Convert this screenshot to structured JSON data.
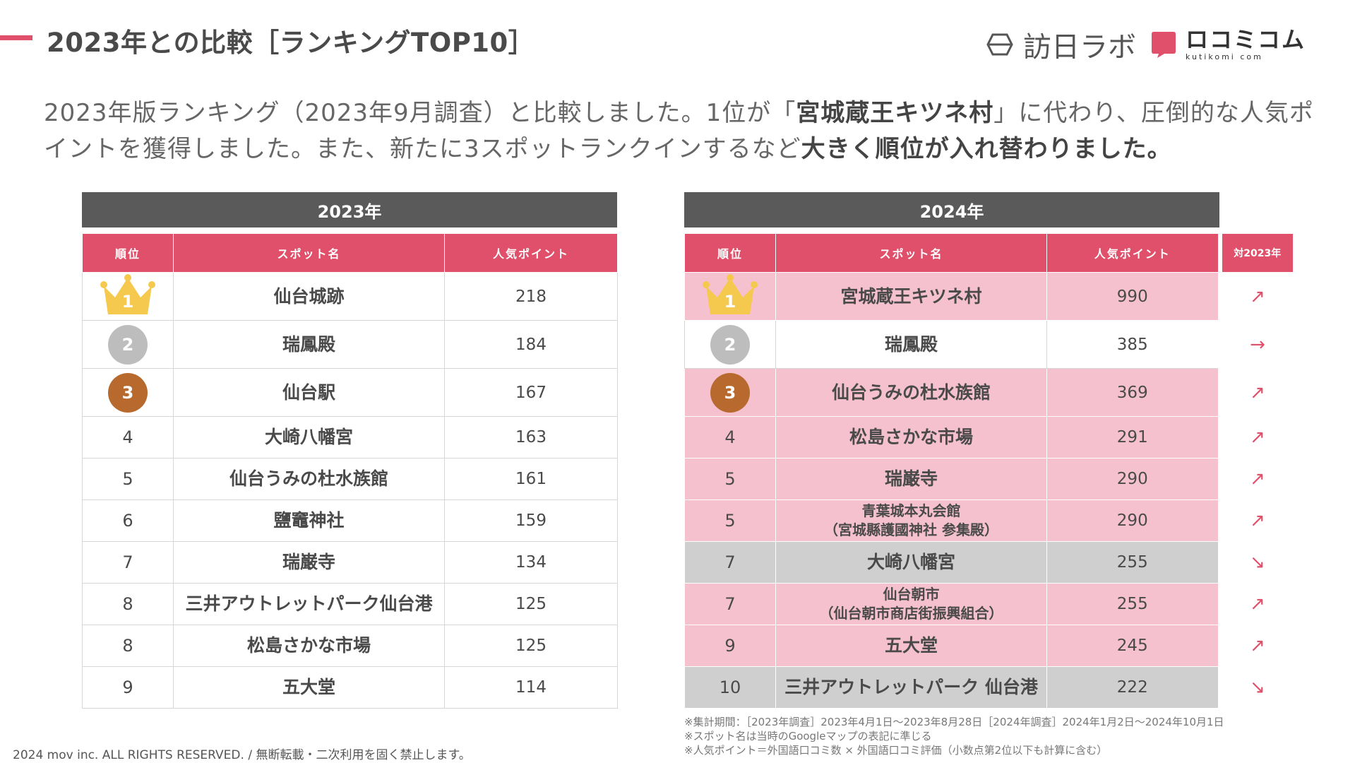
{
  "title": "2023年との比較［ランキングTOP10］",
  "logos": {
    "hounichi": "訪日ラボ",
    "kuchikomi": "ロコミコム",
    "kuchikomi_sub": "kutikomi com"
  },
  "lead": {
    "p1": "2023年版ランキング（2023年9月調査）と比較しました。1位が「",
    "b1": "宮城蔵王キツネ村",
    "p2": "」に代わり、圧倒的な人気ポイントを獲得しました。また、新たに3スポットランクインするなど",
    "b2": "大きく順位が入れ替わりました。"
  },
  "table2023": {
    "year": "2023年",
    "headers": [
      "順位",
      "スポット名",
      "人気ポイント"
    ],
    "rows": [
      {
        "rank": "1",
        "name": "仙台城跡",
        "points": "218"
      },
      {
        "rank": "2",
        "name": "瑞鳳殿",
        "points": "184"
      },
      {
        "rank": "3",
        "name": "仙台駅",
        "points": "167"
      },
      {
        "rank": "4",
        "name": "大崎八幡宮",
        "points": "163"
      },
      {
        "rank": "5",
        "name": "仙台うみの杜水族館",
        "points": "161"
      },
      {
        "rank": "6",
        "name": "鹽竈神社",
        "points": "159"
      },
      {
        "rank": "7",
        "name": "瑞巌寺",
        "points": "134"
      },
      {
        "rank": "8",
        "name": "三井アウトレットパーク仙台港",
        "points": "125"
      },
      {
        "rank": "8",
        "name": "松島さかな市場",
        "points": "125"
      },
      {
        "rank": "9",
        "name": "五大堂",
        "points": "114"
      }
    ]
  },
  "table2024": {
    "year": "2024年",
    "headers": [
      "順位",
      "スポット名",
      "人気ポイント",
      "対2023年"
    ],
    "rows": [
      {
        "rank": "1",
        "name": "宮城蔵王キツネ村",
        "name2": "",
        "points": "990",
        "trend": "↗"
      },
      {
        "rank": "2",
        "name": "瑞鳳殿",
        "name2": "",
        "points": "385",
        "trend": "→"
      },
      {
        "rank": "3",
        "name": "仙台うみの杜水族館",
        "name2": "",
        "points": "369",
        "trend": "↗"
      },
      {
        "rank": "4",
        "name": "松島さかな市場",
        "name2": "",
        "points": "291",
        "trend": "↗"
      },
      {
        "rank": "5",
        "name": "瑞巌寺",
        "name2": "",
        "points": "290",
        "trend": "↗"
      },
      {
        "rank": "5",
        "name": "青葉城本丸会館",
        "name2": "（宮城縣護國神社 参集殿）",
        "points": "290",
        "trend": "↗"
      },
      {
        "rank": "7",
        "name": "大崎八幡宮",
        "name2": "",
        "points": "255",
        "trend": "↘"
      },
      {
        "rank": "7",
        "name": "仙台朝市",
        "name2": "（仙台朝市商店街振興組合）",
        "points": "255",
        "trend": "↗"
      },
      {
        "rank": "9",
        "name": "五大堂",
        "name2": "",
        "points": "245",
        "trend": "↗"
      },
      {
        "rank": "10",
        "name": "三井アウトレットパーク 仙台港",
        "name2": "",
        "points": "222",
        "trend": "↘"
      }
    ]
  },
  "notes": [
    "※集計期間：［2023年調査］2023年4月1日〜2023年8月28日［2024年調査］2024年1月2日〜2024年10月1日",
    "※スポット名は当時のGoogleマップの表記に準じる",
    "※人気ポイント＝外国語口コミ数 × 外国語口コミ評価（小数点第2位以下も計算に含む）"
  ],
  "copyright": "2024 mov inc. ALL RIGHTS RESERVED. / 無断転載・二次利用を固く禁止します。",
  "colors": {
    "accent": "#e0506a",
    "header_gray": "#5a5a5a",
    "row_pink": "#f5c1ce",
    "row_gray": "#cfcfcf",
    "gold": "#f5c94e",
    "silver": "#bdbdbd",
    "bronze": "#b86a2e"
  }
}
